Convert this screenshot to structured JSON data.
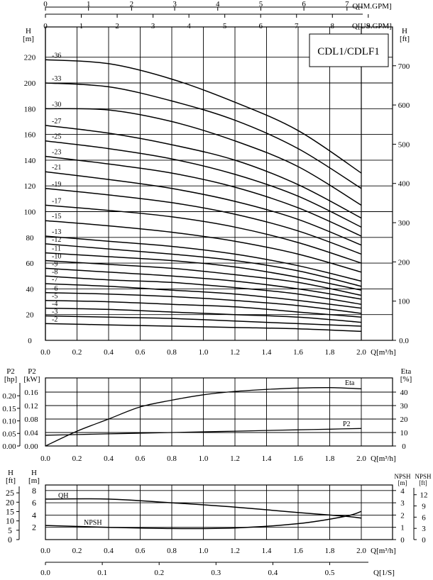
{
  "chart_data": [
    {
      "type": "line",
      "title": "",
      "xlabel": "Q[m³/h]",
      "ylabel_left_unit": [
        "H",
        "[m]"
      ],
      "ylabel_right_unit": [
        "H",
        "[ft]"
      ],
      "model_label": "CDL1/CDLF1",
      "top_axis_us_label": "Q[US.GPM]",
      "top_axis_im_label": "Q[IM.GPM]",
      "xlim": [
        0,
        2.0
      ],
      "ylim": [
        0,
        240
      ],
      "grid": true,
      "x_ticks": [
        "0.0",
        "0.2",
        "0.4",
        "0.6",
        "0.8",
        "1.0",
        "1.2",
        "1.4",
        "1.6",
        "1.8",
        "2.0"
      ],
      "y_ticks": [
        "0",
        "20",
        "40",
        "60",
        "80",
        "100",
        "120",
        "140",
        "160",
        "180",
        "200",
        "220"
      ],
      "y_right_ticks": [
        "0.0",
        "100",
        "200",
        "300",
        "400",
        "500",
        "600",
        "700"
      ],
      "us_ticks": [
        "0",
        "1",
        "2",
        "3",
        "4",
        "5",
        "6",
        "7",
        "8",
        "9"
      ],
      "im_ticks": [
        "0",
        "1",
        "2",
        "3",
        "4",
        "5",
        "6",
        "7"
      ],
      "x": [
        0,
        0.4,
        0.8,
        1.2,
        1.6,
        2.0
      ],
      "series": [
        {
          "name": "-36",
          "values": [
            218,
            215,
            203,
            185,
            163,
            130
          ]
        },
        {
          "name": "-33",
          "values": [
            200,
            197,
            186,
            171,
            149,
            118
          ]
        },
        {
          "name": "-30",
          "values": [
            180,
            179,
            170,
            155,
            135,
            105
          ]
        },
        {
          "name": "-27",
          "values": [
            167,
            161,
            152,
            140,
            121,
            95
          ]
        },
        {
          "name": "-25",
          "values": [
            155,
            149,
            141,
            129,
            112,
            88
          ]
        },
        {
          "name": "-23",
          "values": [
            143,
            137,
            130,
            119,
            103,
            81
          ]
        },
        {
          "name": "-21",
          "values": [
            131,
            125,
            118,
            108,
            94,
            74
          ]
        },
        {
          "name": "-19",
          "values": [
            118,
            113,
            107,
            98,
            85,
            67
          ]
        },
        {
          "name": "-17",
          "values": [
            105,
            101,
            96,
            88,
            76,
            60
          ]
        },
        {
          "name": "-15",
          "values": [
            93,
            89,
            84,
            77,
            67,
            53
          ]
        },
        {
          "name": "-13",
          "values": [
            81,
            77,
            73,
            67,
            58,
            46
          ]
        },
        {
          "name": "-12",
          "values": [
            75,
            71,
            67,
            62,
            54,
            42
          ]
        },
        {
          "name": "-11",
          "values": [
            68,
            65,
            62,
            57,
            49,
            39
          ]
        },
        {
          "name": "-10",
          "values": [
            62,
            59,
            56,
            51,
            45,
            35
          ]
        },
        {
          "name": "-9",
          "values": [
            56,
            53,
            50,
            46,
            40,
            32
          ]
        },
        {
          "name": "-8",
          "values": [
            50,
            47,
            45,
            41,
            36,
            28
          ]
        },
        {
          "name": "-7",
          "values": [
            44,
            42,
            39,
            36,
            31,
            25
          ]
        },
        {
          "name": "-6",
          "values": [
            37,
            36,
            34,
            31,
            27,
            21
          ]
        },
        {
          "name": "-5",
          "values": [
            31,
            30,
            28,
            26,
            22,
            18
          ]
        },
        {
          "name": "-4",
          "values": [
            25,
            24,
            22,
            20,
            18,
            14
          ]
        },
        {
          "name": "-3",
          "values": [
            19,
            18,
            17,
            15,
            13,
            11
          ]
        },
        {
          "name": "-2",
          "values": [
            13,
            12,
            11,
            10,
            9,
            7
          ]
        }
      ]
    },
    {
      "type": "line",
      "xlabel": "Q[m³/h]",
      "y_left_outer_unit": [
        "P2",
        "[hp]"
      ],
      "y_left_inner_unit": [
        "P2",
        "[kW]"
      ],
      "y_right_unit": [
        "Eta",
        "[%]"
      ],
      "xlim": [
        0,
        2.0
      ],
      "ylim": [
        0,
        0.18
      ],
      "x_ticks": [
        "0.0",
        "0.2",
        "0.4",
        "0.6",
        "0.8",
        "1.0",
        "1.2",
        "1.4",
        "1.6",
        "1.8",
        "2.0"
      ],
      "kw_ticks": [
        "0.00",
        "0.04",
        "0.08",
        "0.12",
        "0.16"
      ],
      "hp_ticks": [
        "0.00",
        "0.05",
        "0.10",
        "0.15",
        "0.20"
      ],
      "eta_ticks": [
        "0",
        "10",
        "20",
        "30",
        "40"
      ],
      "x": [
        0,
        0.2,
        0.4,
        0.6,
        0.8,
        1.0,
        1.2,
        1.4,
        1.6,
        1.8,
        2.0
      ],
      "series": [
        {
          "name": "Eta",
          "values": [
            0,
            11,
            20,
            29,
            34,
            38,
            40.5,
            42,
            43,
            43.3,
            42.5
          ]
        },
        {
          "name": "P2",
          "values": [
            0.032,
            0.034,
            0.036,
            0.038,
            0.04,
            0.042,
            0.044,
            0.046,
            0.048,
            0.05,
            0.052
          ]
        }
      ]
    },
    {
      "type": "line",
      "xlabel": "Q[m³/h]",
      "bottom_axis_label": "Q[1/S]",
      "y_left_outer_unit": [
        "H",
        "[ft]"
      ],
      "y_left_inner_unit": [
        "H",
        "[m]"
      ],
      "y_right_inner_unit": [
        "NPSH",
        "[m]"
      ],
      "y_right_outer_unit": [
        "NPSH",
        "[ft]"
      ],
      "xlim": [
        0,
        2.0
      ],
      "ylim": [
        0,
        8
      ],
      "x_ticks": [
        "0.0",
        "0.2",
        "0.4",
        "0.6",
        "0.8",
        "1.0",
        "1.2",
        "1.4",
        "1.6",
        "1.8",
        "2.0"
      ],
      "m_ticks": [
        "2",
        "4",
        "6",
        "8"
      ],
      "ft_ticks": [
        "0",
        "5",
        "10",
        "15",
        "20",
        "25"
      ],
      "npsh_m_ticks": [
        "0",
        "1",
        "2",
        "3",
        "4"
      ],
      "npsh_ft_ticks": [
        "0",
        "3",
        "6",
        "9",
        "12"
      ],
      "ls_ticks": [
        "0.0",
        "0.1",
        "0.2",
        "0.3",
        "0.4",
        "0.5"
      ],
      "x": [
        0,
        0.4,
        0.8,
        1.2,
        1.6,
        1.9,
        2.0
      ],
      "series": [
        {
          "name": "QH",
          "values": [
            6.6,
            6.6,
            6.0,
            5.3,
            4.4,
            3.8,
            3.5
          ]
        },
        {
          "name": "NPSH",
          "values": [
            1.15,
            1.0,
            0.9,
            0.95,
            1.3,
            1.9,
            2.3
          ]
        }
      ]
    }
  ]
}
